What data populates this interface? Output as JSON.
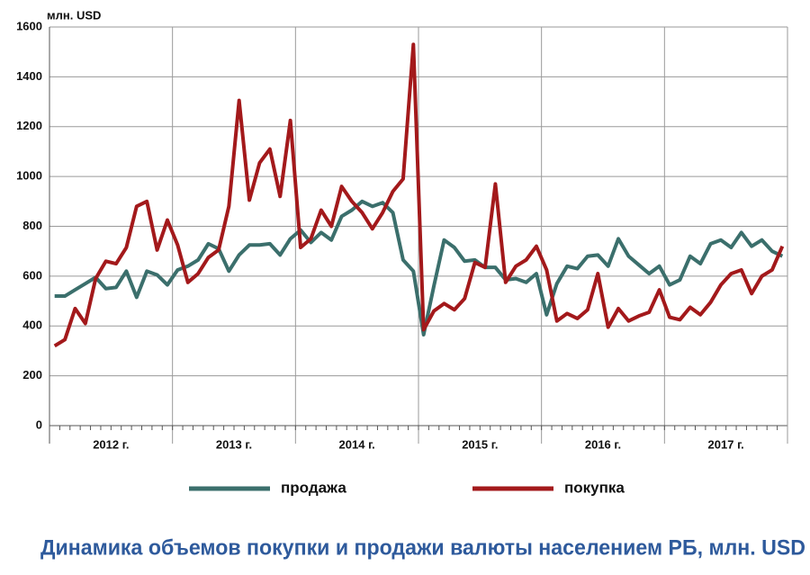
{
  "chart_data": {
    "type": "line",
    "title": "Динамика объемов покупки и продажи валюты населением РБ, млн. USD",
    "y_label": "млн. USD",
    "groups": [
      "2012 г.",
      "2013 г.",
      "2014 г.",
      "2015 г.",
      "2016 г.",
      "2017 г."
    ],
    "ylim": [
      0,
      1600
    ],
    "yticks": [
      0,
      200,
      400,
      600,
      800,
      1000,
      1200,
      1400,
      1600
    ],
    "grid": true,
    "series": [
      {
        "name": "продажа",
        "color": "#3b6f6c",
        "values": [
          520,
          520,
          545,
          570,
          595,
          550,
          555,
          620,
          515,
          620,
          605,
          565,
          625,
          640,
          665,
          730,
          710,
          620,
          685,
          725,
          725,
          730,
          685,
          750,
          785,
          735,
          775,
          745,
          840,
          865,
          900,
          880,
          895,
          855,
          665,
          620,
          365,
          560,
          745,
          715,
          660,
          665,
          635,
          635,
          585,
          590,
          575,
          610,
          445,
          570,
          640,
          630,
          680,
          685,
          640,
          750,
          680,
          645,
          610,
          640,
          565,
          585,
          680,
          650,
          730,
          745,
          715,
          775,
          720,
          745,
          700,
          680
        ]
      },
      {
        "name": "покупка",
        "color": "#a3191b",
        "values": [
          320,
          345,
          470,
          410,
          590,
          660,
          650,
          715,
          880,
          900,
          705,
          825,
          725,
          575,
          610,
          675,
          705,
          880,
          1305,
          905,
          1055,
          1110,
          920,
          1225,
          715,
          750,
          865,
          800,
          960,
          900,
          855,
          790,
          855,
          940,
          990,
          1530,
          385,
          460,
          490,
          465,
          510,
          655,
          635,
          970,
          575,
          640,
          665,
          720,
          625,
          420,
          450,
          430,
          465,
          610,
          395,
          470,
          420,
          440,
          455,
          545,
          435,
          425,
          475,
          445,
          495,
          565,
          610,
          625,
          530,
          600,
          625,
          720
        ]
      }
    ]
  }
}
